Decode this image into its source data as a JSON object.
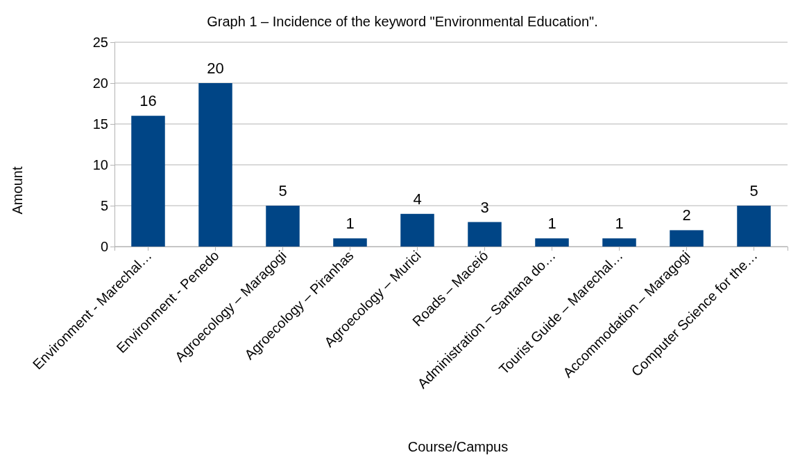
{
  "chart_data": {
    "type": "bar",
    "title": "Graph 1 – Incidence of the keyword \"Environmental Education\".",
    "xlabel": "Course/Campus",
    "ylabel": "Amount",
    "categories": [
      "Environment - Marechal…",
      "Environment - Penedo",
      "Agroecology – Maragogi",
      "Agroecology – Piranhas",
      "Agroecology – Murici",
      "Roads – Maceió",
      "Administration – Santana do…",
      "Tourist Guide – Marechal…",
      "Accommodation – Maragogi",
      "Computer Science for the…"
    ],
    "values": [
      16,
      20,
      5,
      1,
      4,
      3,
      1,
      1,
      2,
      5
    ],
    "color": "#004586",
    "ylim": [
      0,
      25
    ],
    "yticks": [
      0,
      5,
      10,
      15,
      20,
      25
    ],
    "grid": "y",
    "data_labels": true
  }
}
